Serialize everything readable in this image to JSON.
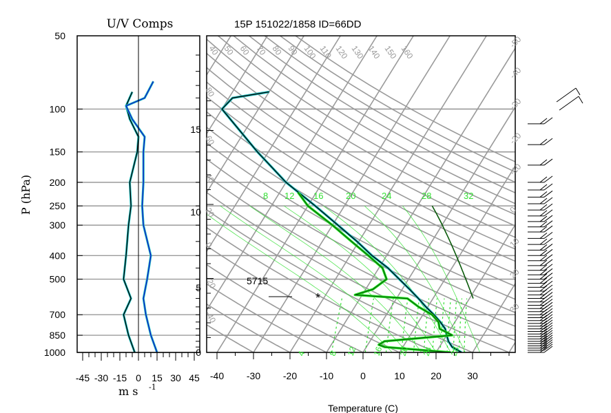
{
  "left_panel": {
    "title": "U/V Comps",
    "ylabel": "P (hPa)",
    "pressure_ticks": [
      1000,
      850,
      700,
      500,
      400,
      300,
      250,
      200,
      150,
      100,
      50
    ],
    "x_ticks": [
      "-45",
      "-30",
      "-15",
      "0",
      "15",
      "30",
      "45"
    ],
    "xlabel_main": "m s",
    "xlabel_exp": "-1"
  },
  "right_panel": {
    "title": "15P 151022/1858 ID=66DD",
    "xlabel": "Temperature (C)",
    "x_ticks": [
      "-40",
      "-30",
      "-20",
      "-10",
      "0",
      "10",
      "20",
      "30"
    ],
    "height_ticks": [
      "0",
      "5",
      "10",
      "15"
    ],
    "annotation": "5715",
    "parcel_marker": "*",
    "dry_adiabat_labels": [
      "40",
      "50",
      "60",
      "70",
      "80",
      "90",
      "100",
      "110",
      "120",
      "130",
      "140",
      "150",
      "160"
    ],
    "left_edge_labels": [
      "80",
      "60",
      "40",
      "20",
      "0",
      "-20",
      "-40"
    ],
    "right_edge_labels": [
      "-50",
      "-40",
      "-30",
      "-20",
      "-10",
      "0",
      "10",
      "20",
      "30"
    ],
    "mixing_ratio_labels_top": [
      "8",
      "12",
      "16",
      "20",
      "24",
      "28",
      "32"
    ],
    "mixing_ratio_labels_bottom": [
      "4",
      "8",
      "12",
      "16",
      "20",
      "24",
      "28"
    ]
  },
  "colors": {
    "grid": "#9a9a9a",
    "temperature": "#000000",
    "temperature_overlay": "#20c0c0",
    "dewpoint": "#0a5a0a",
    "dewpoint_overlay": "#22ee22",
    "mixing_ratio": "#33e033",
    "u_comp": "#000000",
    "v_comp": "#1010c8",
    "overlay": "#20c0c0"
  },
  "chart_data": [
    {
      "type": "line",
      "title": "U/V Comps",
      "xlabel": "m s -1",
      "ylabel": "P (hPa)",
      "xlim": [
        -45,
        45
      ],
      "ylim": [
        1000,
        50
      ],
      "y_scale": "log",
      "series": [
        {
          "pressure": [
            85,
            97,
            110,
            130,
            150,
            200,
            250,
            300,
            400,
            500,
            600,
            700,
            850,
            1000
          ],
          "values": [
            -5,
            -10,
            -7,
            0,
            -1,
            -7,
            -6,
            -8,
            -10,
            -12,
            -6,
            -12,
            -8,
            -3
          ]
        },
        {
          "pressure": [
            77,
            90,
            97,
            110,
            130,
            150,
            200,
            250,
            300,
            400,
            500,
            600,
            700,
            850,
            1000
          ],
          "values": [
            12,
            5,
            -10,
            -5,
            5,
            4,
            4,
            3,
            4,
            10,
            7,
            4,
            6,
            10,
            15
          ]
        }
      ]
    },
    {
      "type": "line",
      "title": "15P 151022/1858 ID=66DD",
      "xlabel": "Temperature (C)",
      "ylabel": "",
      "xlim": [
        -40,
        40
      ],
      "series": [
        {
          "pressure": [
            1000,
            950,
            900,
            850,
            800,
            750,
            700,
            650,
            600,
            550,
            500,
            450,
            400,
            350,
            300,
            250,
            200,
            150,
            100,
            90,
            85
          ],
          "values": [
            27,
            23.5,
            21.5,
            20,
            18.5,
            16,
            13,
            9.5,
            6,
            2,
            -2.5,
            -7.5,
            -14,
            -20.5,
            -28.5,
            -38,
            -50,
            -63,
            -80,
            -79,
            -70
          ]
        },
        {
          "pressure": [
            1000,
            950,
            930,
            900,
            850,
            800,
            750,
            700,
            650,
            600,
            580,
            550,
            500,
            450,
            400,
            350,
            300,
            250,
            220
          ],
          "values": [
            24,
            5,
            3,
            4,
            21.5,
            17,
            15.5,
            12.5,
            7.5,
            3,
            -12,
            -8,
            -6,
            -9,
            -15,
            -22,
            -30,
            -40,
            -45
          ]
        }
      ]
    }
  ]
}
